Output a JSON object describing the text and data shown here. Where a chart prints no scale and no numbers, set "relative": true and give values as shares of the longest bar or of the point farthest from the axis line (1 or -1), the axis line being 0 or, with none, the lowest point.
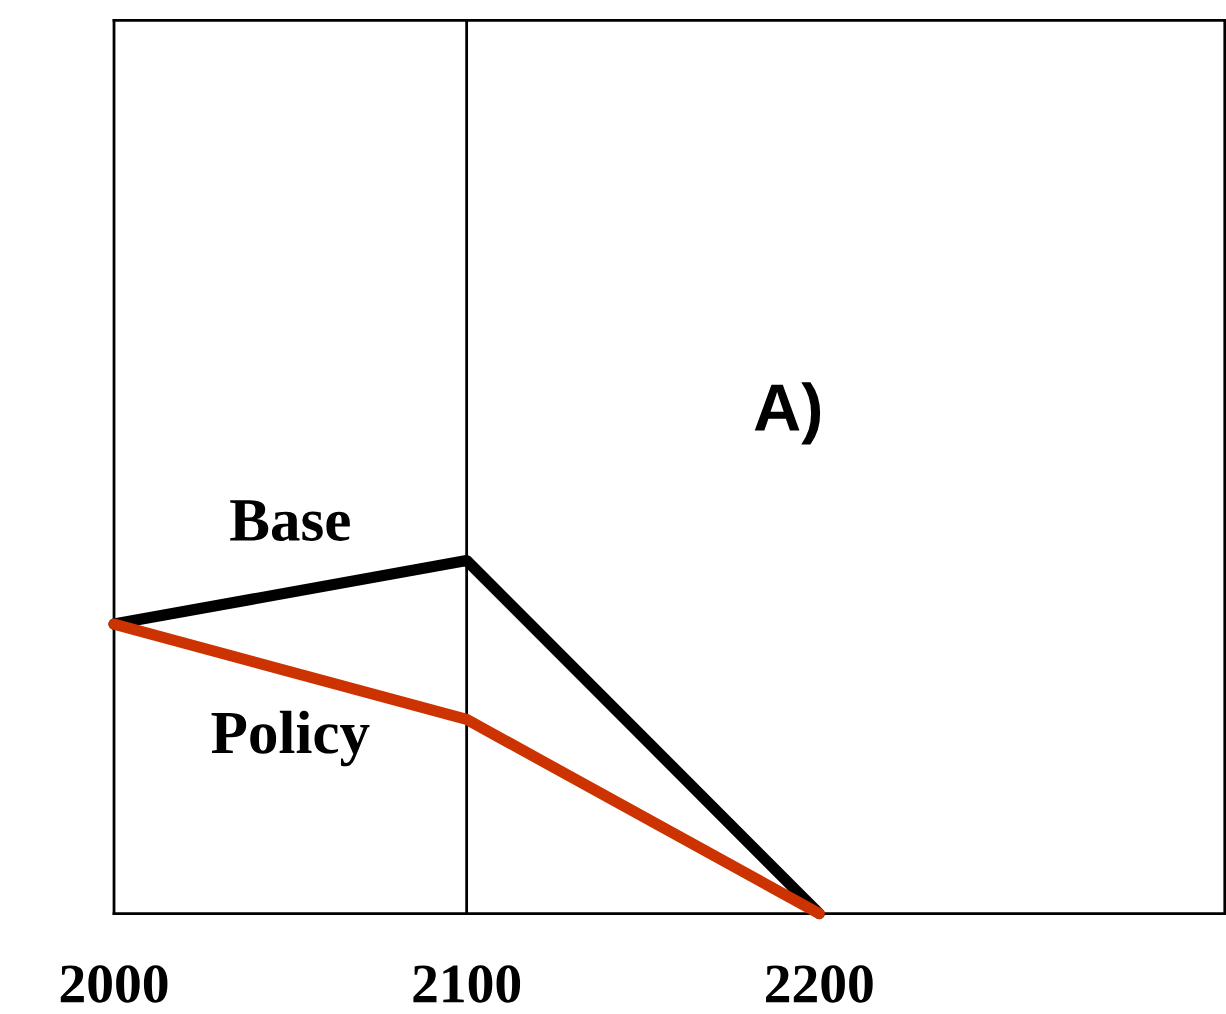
{
  "chart_data": {
    "type": "line",
    "relative": true,
    "x": [
      2000,
      2100,
      2200
    ],
    "xlim": [
      2000,
      2315
    ],
    "xticks": [
      2000,
      2100,
      2200
    ],
    "tick_labels": "x",
    "series": [
      {
        "name": "Base",
        "color": "#000000",
        "values": [
          0.82,
          1,
          0
        ]
      },
      {
        "name": "Policy",
        "color": "#cc3300",
        "values": [
          0.82,
          0.55,
          0
        ]
      }
    ],
    "ref_lines": [
      {
        "axis": "x",
        "value": 2100,
        "color": "#000000"
      }
    ],
    "annotations": [
      "A)"
    ],
    "grid": false,
    "legend": false,
    "marker": "none",
    "line_style": "solid"
  }
}
